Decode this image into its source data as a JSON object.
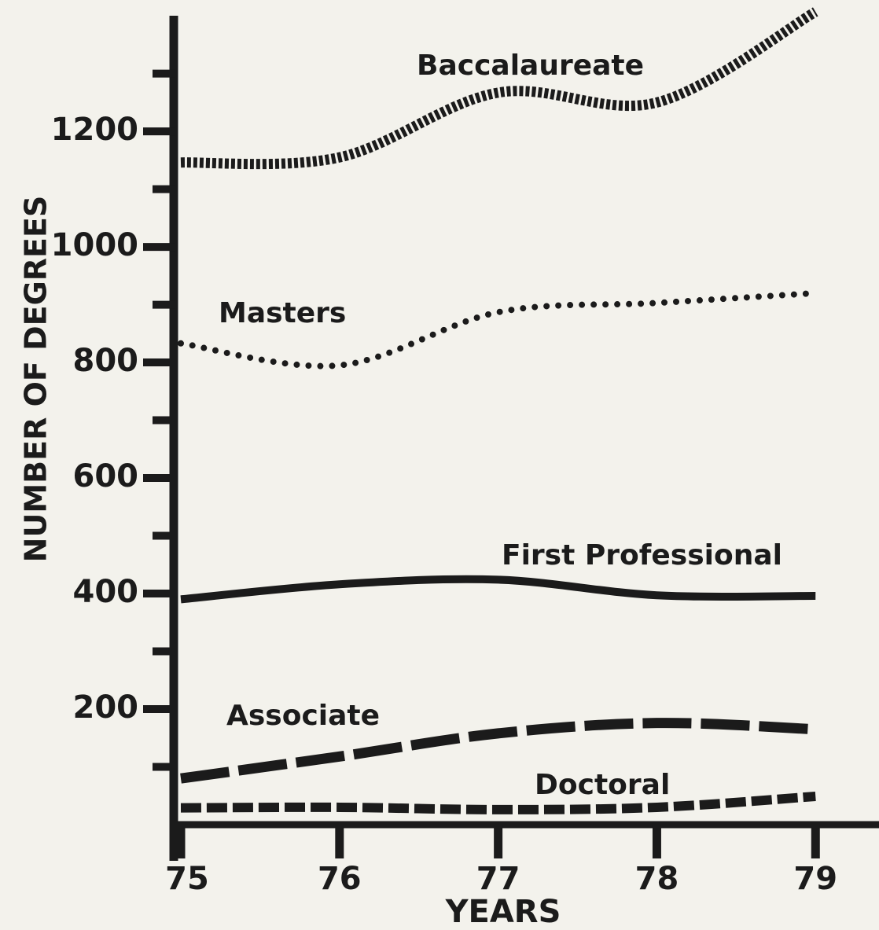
{
  "chart_data": {
    "type": "line",
    "x_label": "YEARS",
    "y_label": "NUMBER OF DEGREES",
    "x": [
      75,
      76,
      77,
      78,
      79
    ],
    "xlim": [
      75,
      79.4
    ],
    "xticks": [
      75,
      76,
      77,
      78,
      79
    ],
    "ylim": [
      0,
      1420
    ],
    "yticks": [
      200,
      400,
      600,
      800,
      1000,
      1200
    ],
    "yticks_minor": [
      100,
      300,
      500,
      700,
      900,
      1100,
      1300
    ],
    "series": [
      {
        "name": "Baccalaureate",
        "color": "#1b1b1b",
        "style": "square-dotted",
        "values": [
          1146,
          1155,
          1267,
          1250,
          1407
        ]
      },
      {
        "name": "Masters",
        "color": "#1b1b1b",
        "style": "dotted",
        "values": [
          833,
          795,
          887,
          903,
          920
        ]
      },
      {
        "name": "First Professional",
        "color": "#1b1b1b",
        "style": "solid",
        "values": [
          390,
          416,
          424,
          397,
          396
        ]
      },
      {
        "name": "Associate",
        "color": "#1b1b1b",
        "style": "long-dashed",
        "values": [
          80,
          118,
          158,
          176,
          165
        ]
      },
      {
        "name": "Doctoral",
        "color": "#1b1b1b",
        "style": "dashed",
        "values": [
          29,
          30,
          26,
          30,
          49
        ]
      }
    ]
  }
}
